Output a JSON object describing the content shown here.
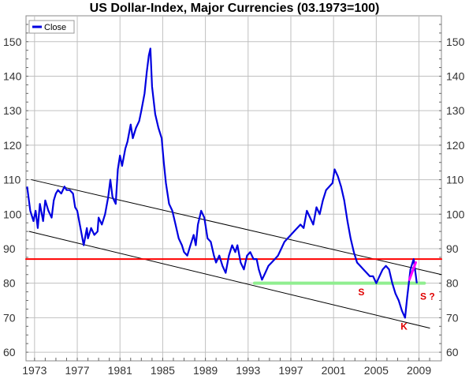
{
  "chart_data": {
    "type": "line",
    "title": "US Dollar-Index, Major Currencies (03.1973=100)",
    "xlabel": "",
    "ylabel": "",
    "xlim": [
      1972.2,
      2011.1
    ],
    "ylim": [
      57.5,
      157.5
    ],
    "x_ticks": [
      1973,
      1977,
      1981,
      1985,
      1989,
      1993,
      1997,
      2001,
      2005,
      2009
    ],
    "y_ticks": [
      60,
      70,
      80,
      90,
      100,
      110,
      120,
      130,
      140,
      150
    ],
    "y_axis_both_sides": true,
    "grid": true,
    "legend_position": "top-left",
    "colors": {
      "series": "#0000e0",
      "channel": "#000000",
      "resistance": "#ff0000",
      "support": "#90ee90",
      "projection": "#ff00ff",
      "annotation": "#e00000",
      "grid": "#c0c0c0"
    },
    "series": [
      {
        "name": "Close",
        "x": [
          1972.3,
          1972.6,
          1972.9,
          1973.1,
          1973.3,
          1973.5,
          1973.8,
          1974.0,
          1974.3,
          1974.6,
          1974.8,
          1975.0,
          1975.2,
          1975.5,
          1975.8,
          1976.0,
          1976.3,
          1976.6,
          1976.8,
          1977.0,
          1977.3,
          1977.6,
          1977.9,
          1978.0,
          1978.3,
          1978.6,
          1978.9,
          1979.0,
          1979.3,
          1979.6,
          1979.9,
          1980.1,
          1980.3,
          1980.6,
          1980.8,
          1981.0,
          1981.2,
          1981.5,
          1981.7,
          1982.0,
          1982.2,
          1982.5,
          1982.8,
          1983.0,
          1983.3,
          1983.5,
          1983.7,
          1983.85,
          1984.0,
          1984.3,
          1984.6,
          1984.9,
          1985.1,
          1985.3,
          1985.6,
          1985.9,
          1986.2,
          1986.5,
          1986.8,
          1987.0,
          1987.3,
          1987.6,
          1987.9,
          1988.1,
          1988.3,
          1988.6,
          1988.9,
          1989.2,
          1989.5,
          1989.8,
          1990.0,
          1990.3,
          1990.6,
          1990.9,
          1991.2,
          1991.5,
          1991.8,
          1992.0,
          1992.3,
          1992.6,
          1992.9,
          1993.2,
          1993.5,
          1993.8,
          1994.0,
          1994.3,
          1994.6,
          1994.9,
          1995.2,
          1995.5,
          1995.8,
          1996.1,
          1996.4,
          1996.7,
          1997.0,
          1997.3,
          1997.6,
          1997.9,
          1998.2,
          1998.5,
          1998.8,
          1999.1,
          1999.4,
          1999.7,
          2000.0,
          2000.3,
          2000.6,
          2000.9,
          2001.1,
          2001.4,
          2001.7,
          2002.0,
          2002.3,
          2002.6,
          2002.9,
          2003.2,
          2003.5,
          2003.8,
          2004.1,
          2004.4,
          2004.7,
          2005.0,
          2005.3,
          2005.6,
          2005.9,
          2006.2,
          2006.5,
          2006.8,
          2007.1,
          2007.4,
          2007.7,
          2007.9,
          2008.2,
          2008.5,
          2008.8
        ],
        "values": [
          108,
          101,
          98,
          101,
          96,
          103,
          98,
          104,
          101,
          99,
          104,
          106,
          107,
          106,
          108,
          107,
          107,
          106,
          102,
          101,
          96,
          91,
          96,
          93,
          96,
          94,
          95,
          99,
          97,
          100,
          105,
          110,
          105,
          103,
          113,
          117,
          114,
          119,
          121,
          126,
          122,
          125,
          127,
          130,
          135,
          141,
          146,
          148,
          137,
          129,
          125,
          122,
          115,
          109,
          103,
          101,
          97,
          93,
          91,
          89,
          88,
          91,
          94,
          91,
          97,
          101,
          99,
          93,
          92,
          88,
          86,
          88,
          85,
          83,
          88,
          91,
          89,
          91,
          86,
          84,
          88,
          89,
          87,
          87,
          84,
          81,
          83,
          85,
          86,
          87,
          88,
          90,
          92,
          93,
          94,
          95,
          96,
          97,
          96,
          101,
          99,
          97,
          102,
          100,
          104,
          107,
          108,
          109,
          113,
          111,
          108,
          104,
          98,
          93,
          89,
          86,
          85,
          84,
          83,
          82,
          82,
          80,
          82,
          84,
          85,
          84,
          80,
          77,
          75,
          72,
          70,
          76,
          84,
          87,
          80
        ]
      }
    ],
    "lines": [
      {
        "name": "upper-channel",
        "from": [
          1972.7,
          110
        ],
        "to": [
          2011.1,
          82.5
        ]
      },
      {
        "name": "lower-channel",
        "from": [
          1972.5,
          95
        ],
        "to": [
          2010.0,
          67
        ]
      },
      {
        "name": "resistance",
        "from": [
          1972.2,
          87
        ],
        "to": [
          2011.1,
          87
        ]
      },
      {
        "name": "support",
        "from": [
          1993.6,
          80
        ],
        "to": [
          2009.5,
          80
        ]
      },
      {
        "name": "projection",
        "from": [
          2008.1,
          81
        ],
        "to": [
          2008.7,
          86
        ]
      }
    ],
    "annotations": [
      {
        "text": "S",
        "x": 2003.6,
        "y": 76.5
      },
      {
        "text": "K",
        "x": 2007.6,
        "y": 66.5
      },
      {
        "text": "S ?",
        "x": 2009.8,
        "y": 75.2
      }
    ]
  }
}
